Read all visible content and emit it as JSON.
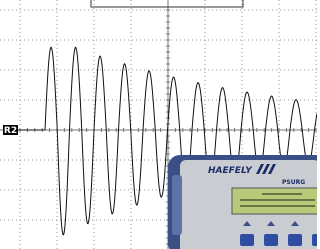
{
  "marker": "R2",
  "device": {
    "brand": "HAEFELY",
    "model": "PSURG"
  }
}
